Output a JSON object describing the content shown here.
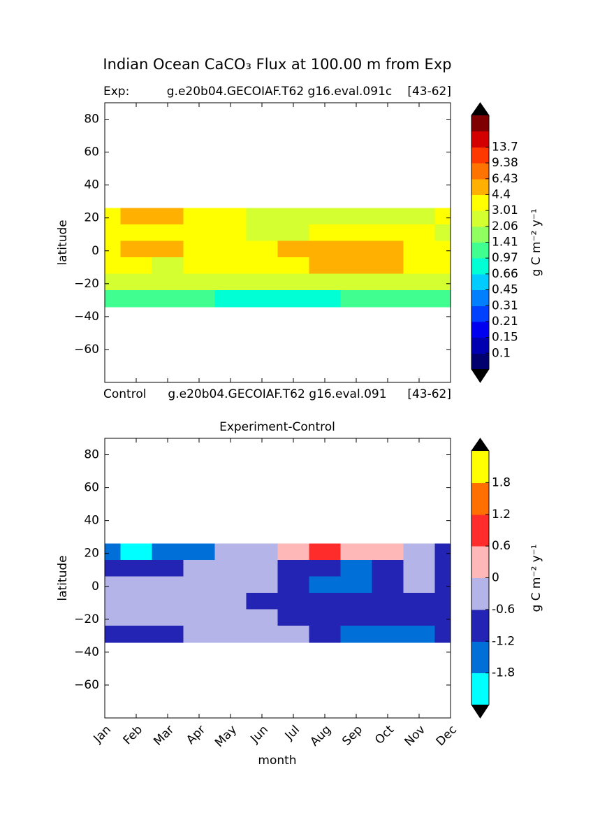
{
  "chart_data": [
    {
      "type": "contour",
      "suptitle": "Indian Ocean CaCO₃  Flux at 100.00 m from Exp",
      "left_label": "Exp:",
      "subtitle": "g.e20b04.GECOIAF.T62 g16.eval.091c",
      "right_label": "[43-62]",
      "bottom_labels": [
        "Control",
        "g.e20b04.GECOIAF.T62 g16.eval.091",
        "[43-62]"
      ],
      "ylabel": "latitude",
      "colorbar_label": "g C m⁻² y⁻¹",
      "ylim": [
        -80,
        90
      ],
      "yticks": [
        {
          "value": -60,
          "label": "−60"
        },
        {
          "value": -40,
          "label": "−40"
        },
        {
          "value": -20,
          "label": "−20"
        },
        0,
        20,
        40,
        60,
        80
      ],
      "y": [
        21,
        11,
        1,
        -9,
        -19,
        -29
      ],
      "values": [
        [
          3.5,
          5.0,
          4.8,
          3.5,
          3.2,
          3.0,
          2.8,
          2.6,
          2.6,
          2.7,
          2.8,
          3.2
        ],
        [
          3.5,
          3.5,
          3.5,
          3.3,
          3.2,
          2.5,
          2.5,
          3.3,
          3.5,
          3.5,
          3.5,
          2.8
        ],
        [
          3.5,
          4.6,
          4.5,
          3.6,
          3.4,
          3.5,
          4.8,
          5.0,
          5.0,
          4.8,
          3.6,
          3.5
        ],
        [
          3.4,
          3.3,
          2.6,
          3.3,
          3.5,
          3.6,
          3.8,
          4.6,
          4.6,
          4.6,
          3.8,
          3.4
        ],
        [
          2.5,
          2.5,
          2.4,
          2.5,
          2.6,
          2.6,
          2.5,
          2.6,
          2.6,
          2.5,
          2.5,
          2.3
        ],
        [
          1.2,
          1.1,
          1.3,
          1.2,
          0.9,
          0.8,
          0.8,
          0.9,
          1.1,
          1.2,
          1.3,
          1.2
        ]
      ],
      "levels": [
        0.1,
        0.15,
        0.21,
        0.31,
        0.45,
        0.66,
        0.97,
        1.41,
        2.06,
        3.01,
        4.4,
        6.43,
        9.38,
        13.7
      ],
      "colors": [
        "#00006e",
        "#0000b0",
        "#0000f0",
        "#0040ff",
        "#0080ff",
        "#00ccff",
        "#00ffd4",
        "#40ff90",
        "#90ff60",
        "#d4ff30",
        "#ffff00",
        "#ffb000",
        "#ff7400",
        "#ff3800",
        "#d40000",
        "#7f0000"
      ]
    },
    {
      "type": "contour",
      "title": "Experiment-Control",
      "xlabel": "month",
      "ylabel": "latitude",
      "colorbar_label": "g C m⁻² y⁻¹",
      "categories": [
        "Jan",
        "Feb",
        "Mar",
        "Apr",
        "May",
        "Jun",
        "Jul",
        "Aug",
        "Sep",
        "Oct",
        "Nov",
        "Dec"
      ],
      "ylim": [
        -80,
        90
      ],
      "yticks": [
        {
          "value": -60,
          "label": "−60"
        },
        {
          "value": -40,
          "label": "−40"
        },
        {
          "value": -20,
          "label": "−20"
        },
        0,
        20,
        40,
        60,
        80
      ],
      "y": [
        21,
        11,
        1,
        -9,
        -19,
        -29
      ],
      "values": [
        [
          -1.3,
          -2.0,
          -1.4,
          -1.3,
          -0.5,
          -0.4,
          0.2,
          0.8,
          0.3,
          0.2,
          -0.5,
          -0.8
        ],
        [
          -0.8,
          -1.0,
          -0.7,
          -0.3,
          -0.4,
          -0.4,
          -0.7,
          -0.8,
          -1.3,
          -0.8,
          -0.5,
          -0.7
        ],
        [
          -0.4,
          -0.4,
          -0.3,
          -0.3,
          -0.3,
          -0.5,
          -0.9,
          -1.3,
          -1.3,
          -0.9,
          -0.4,
          -0.7
        ],
        [
          -0.3,
          -0.2,
          -0.3,
          -0.3,
          -0.4,
          -0.7,
          -0.8,
          -0.8,
          -0.8,
          -0.7,
          -0.7,
          -0.7
        ],
        [
          -0.4,
          -0.3,
          -0.3,
          -0.3,
          -0.4,
          -0.6,
          -0.8,
          -0.8,
          -0.9,
          -0.8,
          -0.9,
          -0.8
        ],
        [
          -0.8,
          -1.0,
          -0.7,
          -0.5,
          -0.4,
          -0.4,
          -0.5,
          -0.9,
          -1.5,
          -1.6,
          -1.3,
          -1.1
        ]
      ],
      "levels": [
        -1.8,
        -1.2,
        -0.6,
        0,
        0.6,
        1.2,
        1.8
      ],
      "colors": [
        "#00ffff",
        "#0070d8",
        "#2424b4",
        "#b4b4e8",
        "#ffb8b8",
        "#ff2c2c",
        "#ff7000",
        "#ffff00"
      ]
    }
  ]
}
